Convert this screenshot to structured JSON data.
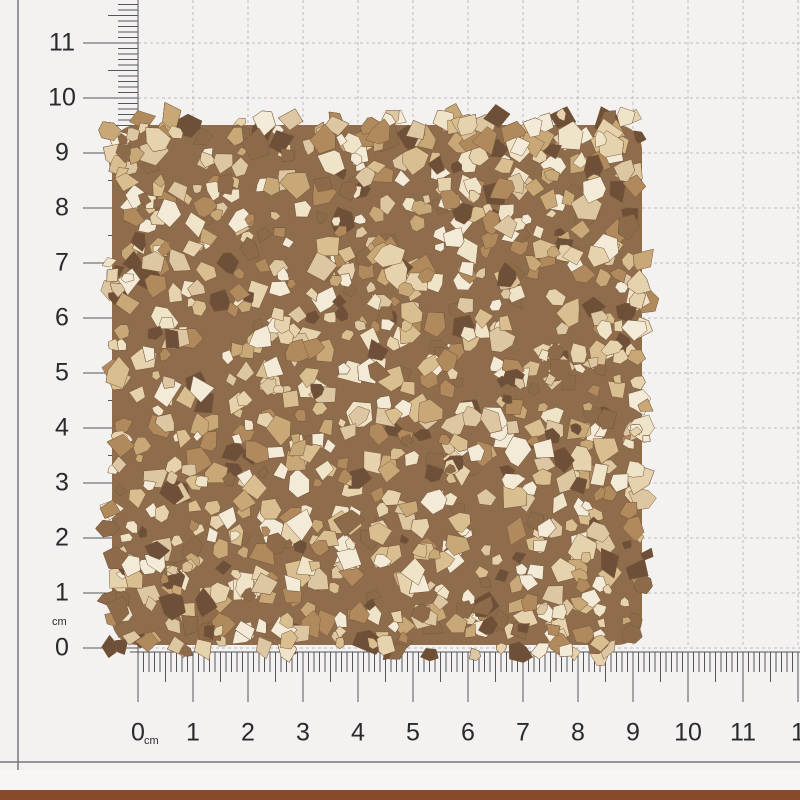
{
  "photo": {
    "subject": "dried-mushroom-granules",
    "colors": {
      "paper": "#f4f2f1",
      "grid": "#b9b7bc",
      "ruler_ink": "#55555c",
      "pile_light": "#e9dcc0",
      "pile_mid": "#c9a877",
      "pile_dark": "#6e5038",
      "table_wood": "#8a4a2a"
    }
  },
  "vertical_ruler": {
    "labels": [
      "0",
      "1",
      "2",
      "3",
      "4",
      "5",
      "6",
      "7",
      "8",
      "9",
      "10",
      "11"
    ],
    "unit": "cm",
    "mm_mark": "mm"
  },
  "horizontal_ruler": {
    "labels": [
      "0",
      "1",
      "2",
      "3",
      "4",
      "5",
      "6",
      "7",
      "8",
      "9",
      "10",
      "11",
      "1"
    ],
    "unit": "cm",
    "mm_mark": "mm"
  }
}
